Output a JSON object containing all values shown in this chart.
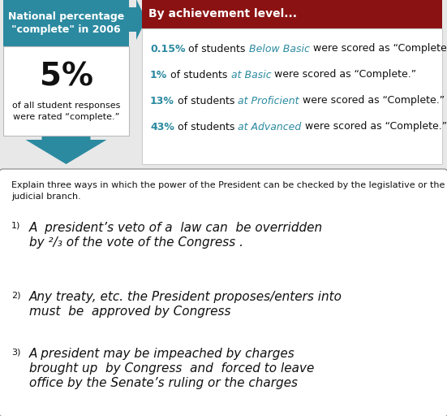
{
  "fig_w": 5.51,
  "fig_h": 5.12,
  "bg_color": "#e8e8e8",
  "teal": "#2b8aa0",
  "dark_red": "#8b1212",
  "white": "#ffffff",
  "black": "#111111",
  "gray_border": "#aaaaaa",
  "top_left_title": "National percentage\n\"complete\" in 2006",
  "top_left_title_color": "#ffffff",
  "big_percent": "5%",
  "subtext_line1": "of all student responses",
  "subtext_line2": "were rated “complete.”",
  "right_header_text": "By achievement level...",
  "right_header_color": "#ffffff",
  "lines": [
    {
      "pct": "0.15%",
      "of_students": " of students ",
      "label": "Below Basic",
      "rest": " were scored as “Complete.”"
    },
    {
      "pct": "1%",
      "of_students": " of students ",
      "label": "at Basic",
      "rest": " were scored as “Complete.”"
    },
    {
      "pct": "13%",
      "of_students": " of students ",
      "label": "at Proficient",
      "rest": " were scored as “Complete.”"
    },
    {
      "pct": "43%",
      "of_students": " of students ",
      "label": "at Advanced",
      "rest": " were scored as “Complete.”"
    }
  ],
  "prompt_text": "Explain three ways in which the power of the President can be checked by the legislative or the\njudicial branch.",
  "answers": [
    {
      "num": "1)",
      "lines": [
        "A  president’s veto of a  law can  be overridden",
        "by ²/₃ of the vote of the Congress ."
      ]
    },
    {
      "num": "2)",
      "lines": [
        "Any treaty, etc. the President proposes/enters into",
        "must  be  approved by Congress"
      ]
    },
    {
      "num": "3)",
      "lines": [
        "A president may be impeached by charges",
        "brought up  by Congress  and  forced to leave",
        "office by the Senate’s ruling or the charges"
      ]
    }
  ]
}
